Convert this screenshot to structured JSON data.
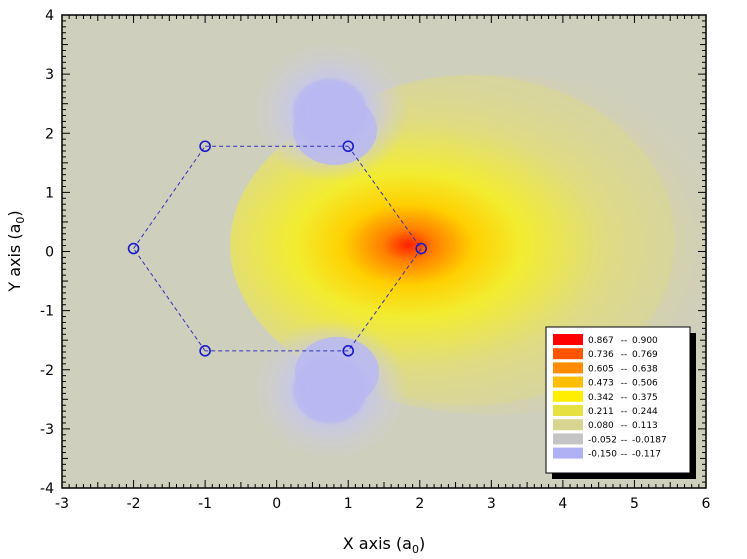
{
  "chart_data": {
    "type": "contour",
    "title": "",
    "xlabel": "X axis (a",
    "xlabel_sub": "0",
    "xlabel_close": ")",
    "ylabel": "Y axis (a",
    "ylabel_sub": "0",
    "ylabel_close": ")",
    "xlim": [
      -3,
      6
    ],
    "ylim": [
      -4,
      4
    ],
    "xticks": [
      -3,
      -2,
      -1,
      0,
      1,
      2,
      3,
      4,
      5,
      6
    ],
    "yticks": [
      -4,
      -3,
      -2,
      -1,
      0,
      1,
      2,
      3,
      4
    ],
    "grid": false,
    "background_color": "#cfcfbe",
    "atoms": [
      {
        "x": -2.0,
        "y": 0.05
      },
      {
        "x": -1.0,
        "y": 1.78
      },
      {
        "x": 1.0,
        "y": 1.78
      },
      {
        "x": 2.02,
        "y": 0.05
      },
      {
        "x": 1.0,
        "y": -1.68
      },
      {
        "x": -1.0,
        "y": -1.68
      }
    ],
    "bond_color": "#3333bb",
    "legend_position": "bottom-right",
    "legend": [
      {
        "low": "0.867",
        "sep": "--",
        "high": "0.900",
        "color": "#ff0000"
      },
      {
        "low": "0.736",
        "sep": "--",
        "high": "0.769",
        "color": "#ff5500"
      },
      {
        "low": "0.605",
        "sep": "--",
        "high": "0.638",
        "color": "#ff8c00"
      },
      {
        "low": "0.473",
        "sep": "--",
        "high": "0.506",
        "color": "#ffbe00"
      },
      {
        "low": "0.342",
        "sep": "--",
        "high": "0.375",
        "color": "#ffee00"
      },
      {
        "low": "0.211",
        "sep": "--",
        "high": "0.244",
        "color": "#e6e040"
      },
      {
        "low": "0.080",
        "sep": "--",
        "high": "0.113",
        "color": "#d8d590"
      },
      {
        "low": "-0.052",
        "sep": "--",
        "high": "-0.0187",
        "color": "#c4c4c4"
      },
      {
        "low": "-0.150",
        "sep": "--",
        "high": "-0.117",
        "color": "#b0b0f5"
      }
    ]
  }
}
